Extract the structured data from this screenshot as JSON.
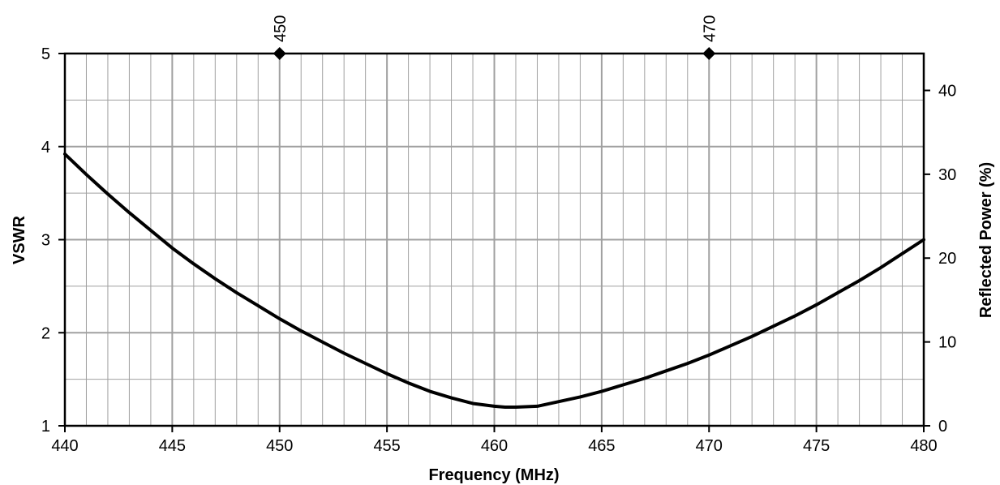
{
  "chart_data": {
    "type": "line",
    "xlabel": "Frequency (MHz)",
    "ylabel": "VSWR",
    "y2label": "Reflected Power (%)",
    "xlim": [
      440,
      480
    ],
    "ylim": [
      1,
      5
    ],
    "y2lim": [
      0,
      44.4
    ],
    "x_ticks": [
      "440",
      "445",
      "450",
      "455",
      "460",
      "465",
      "470",
      "475",
      "480"
    ],
    "y_ticks": [
      "1",
      "2",
      "3",
      "4",
      "5"
    ],
    "y2_ticks": [
      "0",
      "10",
      "20",
      "30",
      "40"
    ],
    "grid": true,
    "markers": [
      {
        "x": 450,
        "label": "450"
      },
      {
        "x": 470,
        "label": "470"
      }
    ],
    "series": [
      {
        "x": [
          440,
          441,
          442,
          443,
          444,
          445,
          446,
          447,
          448,
          449,
          450,
          451,
          452,
          453,
          454,
          455,
          456,
          457,
          458,
          459,
          460,
          460.5,
          461,
          462,
          463,
          464,
          465,
          466,
          467,
          468,
          469,
          470,
          471,
          472,
          473,
          474,
          475,
          476,
          477,
          478,
          479,
          480
        ],
        "values": [
          3.92,
          3.7,
          3.49,
          3.29,
          3.1,
          2.91,
          2.74,
          2.58,
          2.43,
          2.29,
          2.15,
          2.02,
          1.9,
          1.78,
          1.67,
          1.56,
          1.46,
          1.37,
          1.3,
          1.24,
          1.21,
          1.2,
          1.2,
          1.21,
          1.26,
          1.31,
          1.37,
          1.44,
          1.51,
          1.59,
          1.67,
          1.76,
          1.86,
          1.96,
          2.07,
          2.18,
          2.3,
          2.43,
          2.56,
          2.7,
          2.85,
          3.0
        ]
      }
    ]
  },
  "colors": {
    "line": "#000000",
    "grid": "#a0a0a0",
    "frame": "#000000"
  }
}
